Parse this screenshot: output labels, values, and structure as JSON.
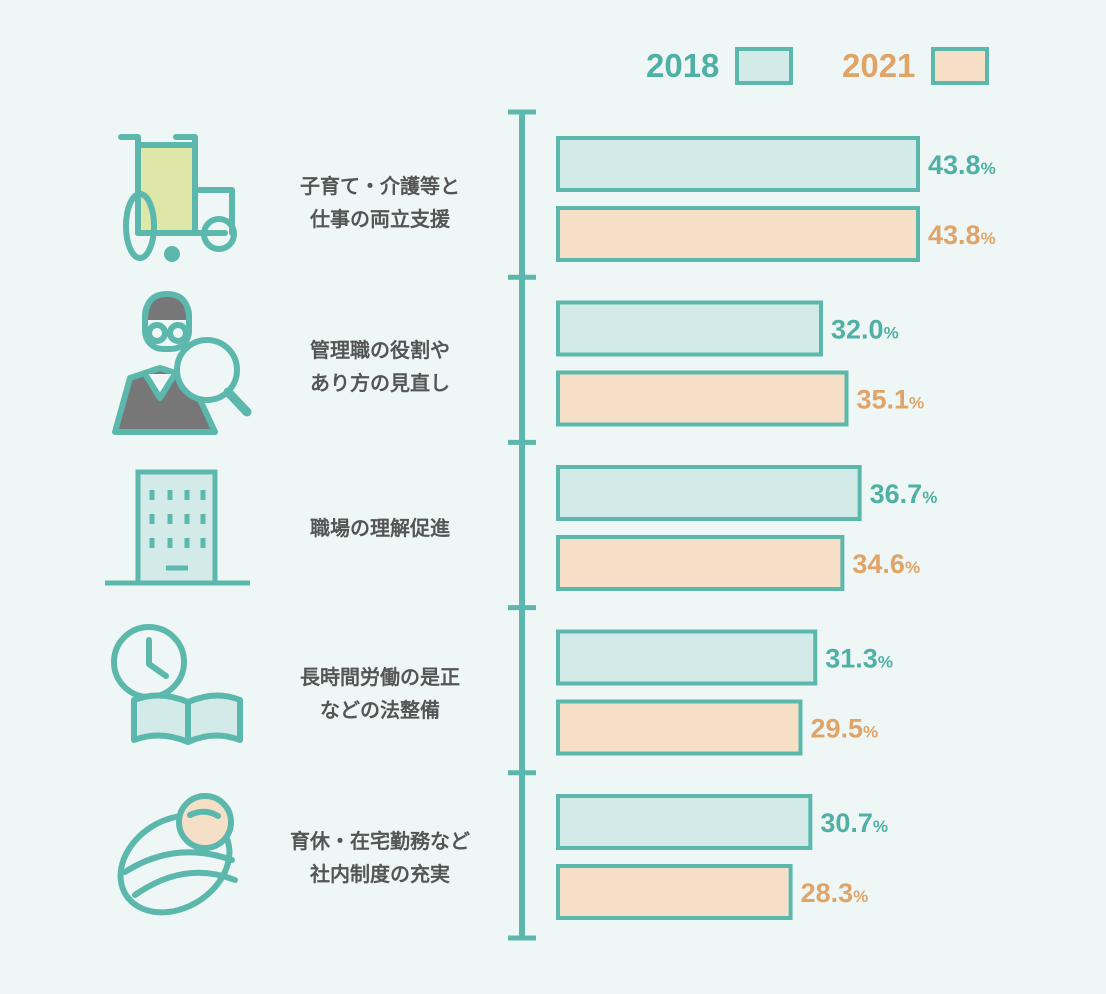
{
  "colors": {
    "background": "#eef7f5",
    "y2018_fill": "#d2ebe8",
    "y2021_fill": "#f6dfc7",
    "border": "#5cb8ad",
    "y2018_text": "#4fb0a5",
    "y2021_text": "#e0a468",
    "label_text": "#555555"
  },
  "legend": [
    {
      "label": "2018",
      "color": "#4fb0a5",
      "fill": "#d2ebe8"
    },
    {
      "label": "2021",
      "color": "#e0a468",
      "fill": "#f6dfc7"
    }
  ],
  "categories_display": [
    {
      "line1": "子育て・介護等と",
      "line2": "仕事の両立支援",
      "icon": "wheelchair-icon"
    },
    {
      "line1": "管理職の役割や",
      "line2": "あり方の見直し",
      "icon": "manager-magnifier-icon"
    },
    {
      "line1": "職場の理解促進",
      "line2": "",
      "icon": "office-building-icon"
    },
    {
      "line1": "長時間労働の是正",
      "line2": "などの法整備",
      "icon": "clock-book-icon"
    },
    {
      "line1": "育休・在宅勤務など",
      "line2": "社内制度の充実",
      "icon": "swaddled-baby-icon"
    }
  ],
  "chart_data": {
    "type": "bar",
    "orientation": "horizontal",
    "categories": [
      "子育て・介護等と仕事の両立支援",
      "管理職の役割やあり方の見直し",
      "職場の理解促進",
      "長時間労働の是正などの法整備",
      "育休・在宅勤務など社内制度の充実"
    ],
    "series": [
      {
        "name": "2018",
        "values": [
          43.8,
          32.0,
          36.7,
          31.3,
          30.7
        ],
        "labels": [
          "43.8",
          "32.0",
          "36.7",
          "31.3",
          "30.7"
        ]
      },
      {
        "name": "2021",
        "values": [
          43.8,
          35.1,
          34.6,
          29.5,
          28.3
        ],
        "labels": [
          "43.8",
          "35.1",
          "34.6",
          "29.5",
          "28.3"
        ]
      }
    ],
    "unit": "%",
    "xlim": [
      0,
      43.8
    ],
    "legend_position": "top-right",
    "grid": false
  }
}
